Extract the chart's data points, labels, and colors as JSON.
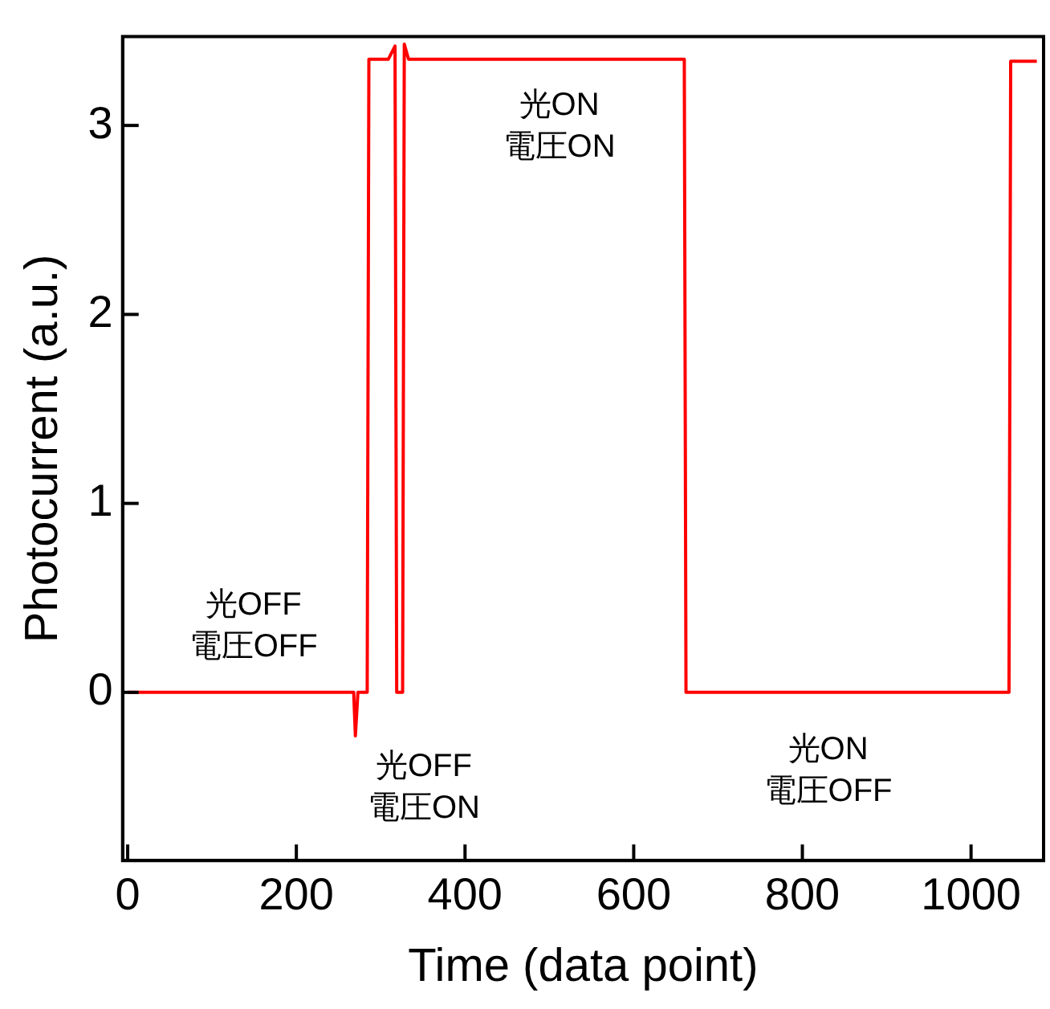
{
  "chart_data": {
    "type": "line",
    "xlabel": "Time (data point)",
    "ylabel": "Photocurrent (a.u.)",
    "x": [
      0,
      268,
      270,
      273,
      284,
      286,
      309,
      317,
      319,
      320,
      326,
      328,
      333,
      660,
      662,
      1045,
      1047,
      1078
    ],
    "series": [
      {
        "color": "#ff0000",
        "values": [
          0,
          0,
          -0.23,
          0,
          0,
          3.35,
          3.35,
          3.42,
          0,
          0,
          0,
          3.43,
          3.35,
          3.35,
          0,
          0,
          3.34,
          3.34
        ]
      }
    ],
    "xlim": [
      -6,
      1086
    ],
    "xticks": [
      0,
      200,
      400,
      600,
      800,
      1000
    ],
    "ylim": [
      -0.89,
      3.47
    ],
    "yticks": [
      0,
      1,
      2,
      3
    ],
    "grid": false,
    "legend": false,
    "marker": "none",
    "line_style": "solid",
    "annotations": [
      "光OFF\n電圧OFF",
      "光OFF\n電圧ON",
      "光ON\n電圧ON",
      "光ON\n電圧OFF"
    ]
  }
}
